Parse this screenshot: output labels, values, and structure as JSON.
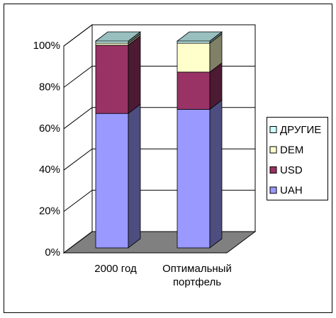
{
  "chart_data": {
    "type": "bar",
    "stacked": true,
    "categories": [
      "2000 год",
      "Оптимальный портфель"
    ],
    "series": [
      {
        "name": "UAH",
        "color": "#9999ff",
        "values": [
          65,
          67
        ]
      },
      {
        "name": "USD",
        "color": "#993366",
        "values": [
          33,
          18
        ]
      },
      {
        "name": "DEM",
        "color": "#ffffcc",
        "values": [
          1,
          14
        ]
      },
      {
        "name": "ДРУГИЕ",
        "color": "#ccffff",
        "values": [
          1,
          1
        ]
      }
    ],
    "ylim": [
      0,
      100
    ],
    "yticks": [
      {
        "value": 0,
        "label": "0%"
      },
      {
        "value": 20,
        "label": "20%"
      },
      {
        "value": 40,
        "label": "40%"
      },
      {
        "value": 60,
        "label": "60%"
      },
      {
        "value": 80,
        "label": "80%"
      },
      {
        "value": 100,
        "label": "100%"
      }
    ],
    "grid": true,
    "legend": "right",
    "floor_color": "#808080"
  }
}
